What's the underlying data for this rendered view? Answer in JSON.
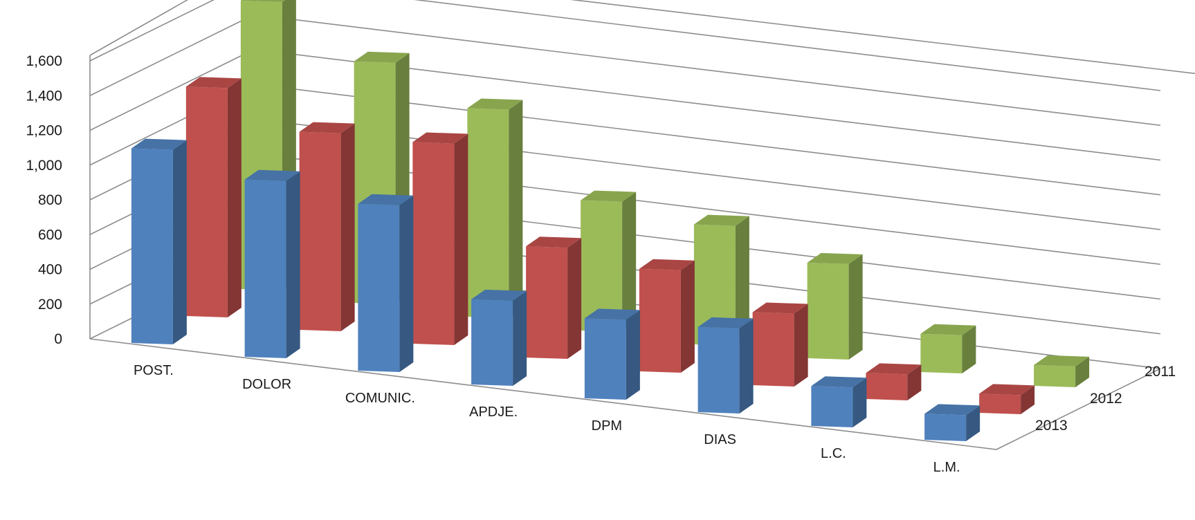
{
  "chart_data": {
    "type": "bar",
    "title": "",
    "xlabel": "",
    "ylabel": "",
    "ylim": [
      0,
      1600
    ],
    "yticks": [
      "0",
      "200",
      "400",
      "600",
      "800",
      "1,000",
      "1,200",
      "1,400",
      "1,600"
    ],
    "categories": [
      "POST.",
      "DOLOR",
      "COMUNIC.",
      "APDJE.",
      "DPM",
      "DIAS",
      "L.C.",
      "L.M."
    ],
    "grid": true,
    "legend": "none",
    "series": [
      {
        "name": "2011",
        "color": "#9bbb59",
        "values": [
          1660,
          1390,
          1200,
          750,
          690,
          550,
          220,
          120
        ]
      },
      {
        "name": "2012",
        "color": "#c0504d",
        "values": [
          1320,
          1140,
          1160,
          640,
          590,
          420,
          150,
          110
        ]
      },
      {
        "name": "2013",
        "color": "#4f81bd",
        "values": [
          1120,
          1020,
          960,
          490,
          460,
          490,
          230,
          150
        ]
      }
    ]
  }
}
